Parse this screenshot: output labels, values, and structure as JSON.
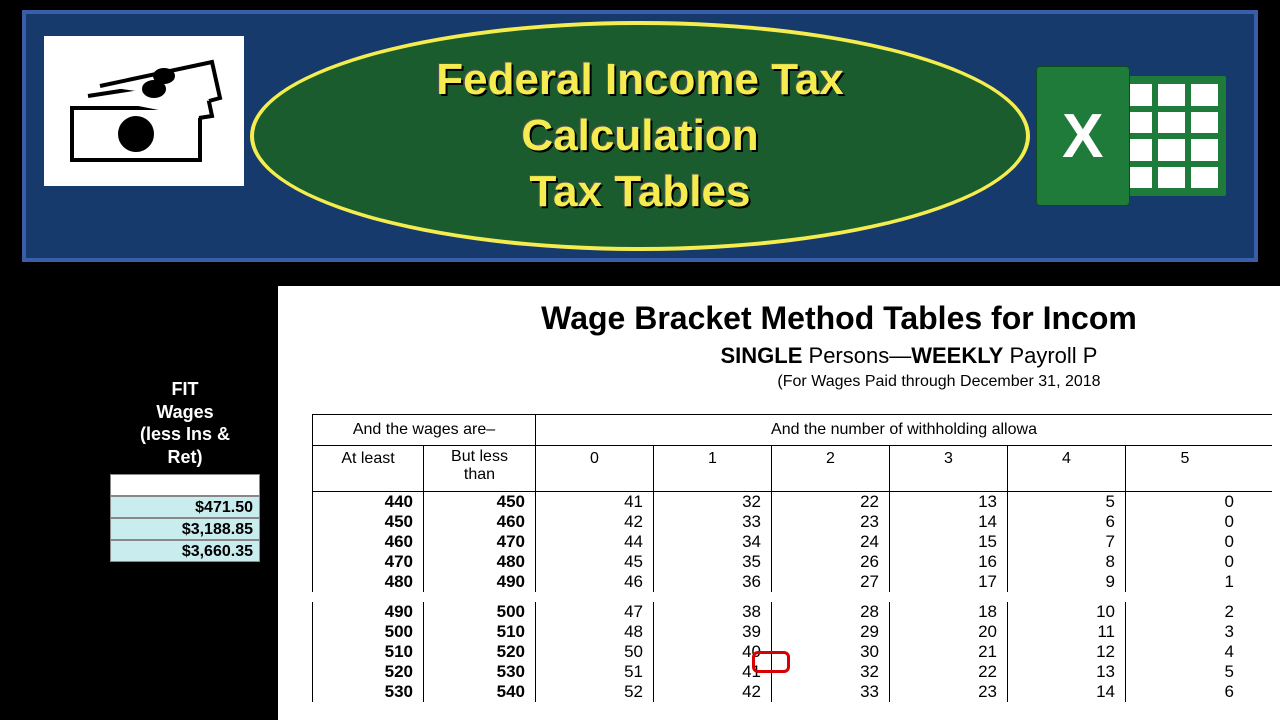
{
  "header": {
    "title_line1": "Federal Income Tax",
    "title_line2": "Calculation",
    "title_line3": "Tax Tables",
    "title_color": "#f5ed4f",
    "header_bg": "#163a6b",
    "header_border": "#3a5fa8",
    "ellipse_bg": "#1a5c2e",
    "ellipse_border": "#f5ed4f",
    "excel_letter": "X",
    "excel_color": "#1e7b3a"
  },
  "fit": {
    "header_line1": "FIT",
    "header_line2": "Wages",
    "header_line3": "(less Ins &",
    "header_line4": "Ret)",
    "rows": [
      "$471.50",
      "$3,188.85",
      "$3,660.35"
    ],
    "row_bg": "#c9ecee"
  },
  "doc": {
    "title": "Wage Bracket Method Tables for Incom",
    "sub_prefix": "SINGLE",
    "sub_mid": " Persons—",
    "sub_bold2": "WEEKLY",
    "sub_suffix": " Payroll P",
    "note": "(For Wages Paid through December 31, 2018",
    "wages_hdr": "And the wages are–",
    "allow_hdr": "And the number of withholding allowa",
    "col_atleast": "At least",
    "col_butless_l1": "But less",
    "col_butless_l2": "than",
    "num_cols": [
      "0",
      "1",
      "2",
      "3",
      "4",
      "5"
    ],
    "group1": [
      {
        "atleast": "440",
        "butless": "450",
        "vals": [
          "41",
          "32",
          "22",
          "13",
          "5",
          "0"
        ]
      },
      {
        "atleast": "450",
        "butless": "460",
        "vals": [
          "42",
          "33",
          "23",
          "14",
          "6",
          "0"
        ]
      },
      {
        "atleast": "460",
        "butless": "470",
        "vals": [
          "44",
          "34",
          "24",
          "15",
          "7",
          "0"
        ]
      },
      {
        "atleast": "470",
        "butless": "480",
        "vals": [
          "45",
          "35",
          "26",
          "16",
          "8",
          "0"
        ]
      },
      {
        "atleast": "480",
        "butless": "490",
        "vals": [
          "46",
          "36",
          "27",
          "17",
          "9",
          "1"
        ]
      }
    ],
    "group2": [
      {
        "atleast": "490",
        "butless": "500",
        "vals": [
          "47",
          "38",
          "28",
          "18",
          "10",
          "2"
        ]
      },
      {
        "atleast": "500",
        "butless": "510",
        "vals": [
          "48",
          "39",
          "29",
          "20",
          "11",
          "3"
        ]
      },
      {
        "atleast": "510",
        "butless": "520",
        "vals": [
          "50",
          "40",
          "30",
          "21",
          "12",
          "4"
        ]
      },
      {
        "atleast": "520",
        "butless": "530",
        "vals": [
          "51",
          "41",
          "32",
          "22",
          "13",
          "5"
        ]
      },
      {
        "atleast": "530",
        "butless": "540",
        "vals": [
          "52",
          "42",
          "33",
          "23",
          "14",
          "6"
        ]
      }
    ],
    "highlight": {
      "group": 0,
      "row": 3,
      "col": 1,
      "color": "#d80000"
    }
  }
}
